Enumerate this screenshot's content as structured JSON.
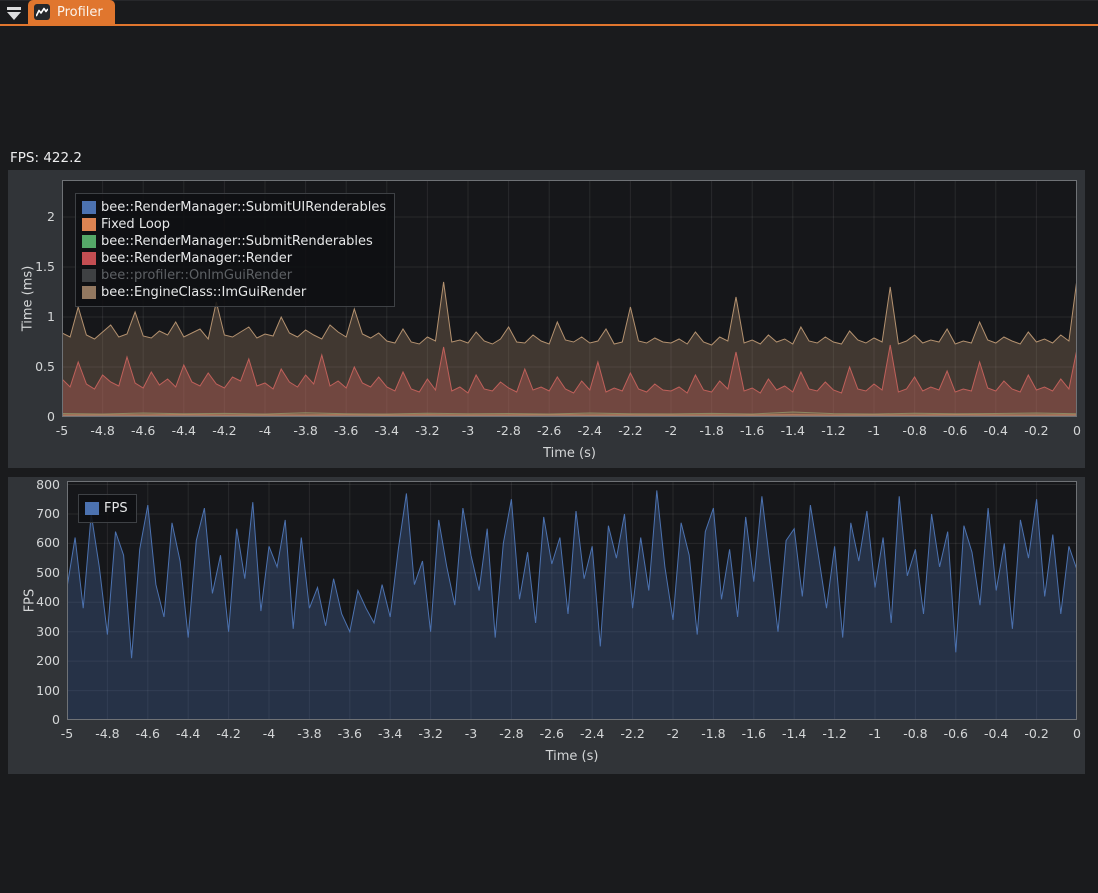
{
  "page": {
    "background": "#1A1B1D",
    "accent": "#E0762E",
    "panel_bg": "#313438",
    "plot_bg": "#16171A",
    "plot_border": "#6F7276",
    "grid_color": "rgba(255,255,255,0.08)"
  },
  "tab_bar": {
    "collapse_icon": "triangle-down-with-bar",
    "tabs": [
      {
        "label": "Profiler",
        "icon": "line-chart",
        "active": true
      }
    ]
  },
  "status": {
    "fps_text": "FPS: 422.2"
  },
  "chart_data": [
    {
      "type": "area",
      "title": "",
      "xlabel": "Time (s)",
      "ylabel": "Time (ms)",
      "xlim": [
        -5,
        0
      ],
      "ylim": [
        0,
        2.37
      ],
      "xticks": [
        -5,
        -4.8,
        -4.6,
        -4.4,
        -4.2,
        -4,
        -3.8,
        -3.6,
        -3.4,
        -3.2,
        -3,
        -2.8,
        -2.6,
        -2.4,
        -2.2,
        -2,
        -1.8,
        -1.6,
        -1.4,
        -1.2,
        -1,
        -0.8,
        -0.6,
        -0.4,
        -0.2,
        0
      ],
      "yticks": [
        0,
        0.5,
        1,
        1.5,
        2
      ],
      "grid": true,
      "legend_position": "top-left",
      "series": [
        {
          "name": "bee::RenderManager::SubmitUIRenderables",
          "color": "#4C72B0",
          "swatch": "#4C72B0",
          "fill_alpha": 0.3,
          "enabled": true,
          "x0": -5,
          "dx": 0.2,
          "values": [
            0.012,
            0.015,
            0.012,
            0.014,
            0.012,
            0.013,
            0.015,
            0.012,
            0.013,
            0.012,
            0.014,
            0.012,
            0.013,
            0.015,
            0.012,
            0.013,
            0.012,
            0.014,
            0.013,
            0.012,
            0.015,
            0.013,
            0.012,
            0.014,
            0.012,
            0.013
          ]
        },
        {
          "name": "Fixed Loop",
          "color": "#DD8452",
          "swatch": "#DD8452",
          "fill_alpha": 0.3,
          "enabled": true,
          "x0": -5,
          "dx": 0.2,
          "values": [
            0.02,
            0.022,
            0.02,
            0.025,
            0.02,
            0.021,
            0.02,
            0.024,
            0.02,
            0.022,
            0.02,
            0.021,
            0.025,
            0.02,
            0.022,
            0.02,
            0.021,
            0.02,
            0.024,
            0.02,
            0.022,
            0.02,
            0.025,
            0.021,
            0.02,
            0.022
          ]
        },
        {
          "name": "bee::RenderManager::SubmitRenderables",
          "color": "#55A868",
          "swatch": "#55A868",
          "fill_alpha": 0.3,
          "enabled": true,
          "x0": -5,
          "dx": 0.2,
          "values": [
            0.035,
            0.03,
            0.04,
            0.032,
            0.036,
            0.03,
            0.042,
            0.033,
            0.03,
            0.038,
            0.032,
            0.035,
            0.03,
            0.04,
            0.033,
            0.031,
            0.036,
            0.03,
            0.05,
            0.034,
            0.03,
            0.038,
            0.032,
            0.035,
            0.04,
            0.032
          ]
        },
        {
          "name": "bee::RenderManager::Render",
          "color": "#C44E52",
          "swatch": "#C44E52",
          "fill_alpha": 0.38,
          "enabled": true,
          "x0": -5,
          "dx": 0.04,
          "values": [
            0.38,
            0.3,
            0.55,
            0.33,
            0.28,
            0.42,
            0.35,
            0.31,
            0.6,
            0.34,
            0.29,
            0.45,
            0.32,
            0.38,
            0.3,
            0.52,
            0.35,
            0.31,
            0.44,
            0.33,
            0.29,
            0.4,
            0.36,
            0.58,
            0.31,
            0.34,
            0.28,
            0.48,
            0.35,
            0.3,
            0.42,
            0.33,
            0.62,
            0.31,
            0.36,
            0.29,
            0.5,
            0.34,
            0.3,
            0.4,
            0.3,
            0.26,
            0.45,
            0.28,
            0.25,
            0.38,
            0.27,
            0.7,
            0.26,
            0.3,
            0.24,
            0.42,
            0.28,
            0.26,
            0.35,
            0.29,
            0.25,
            0.48,
            0.27,
            0.3,
            0.26,
            0.4,
            0.28,
            0.24,
            0.36,
            0.27,
            0.55,
            0.25,
            0.29,
            0.26,
            0.44,
            0.28,
            0.25,
            0.33,
            0.27,
            0.26,
            0.3,
            0.24,
            0.42,
            0.27,
            0.25,
            0.36,
            0.28,
            0.65,
            0.26,
            0.29,
            0.24,
            0.38,
            0.27,
            0.31,
            0.25,
            0.45,
            0.28,
            0.26,
            0.35,
            0.27,
            0.24,
            0.5,
            0.28,
            0.26,
            0.33,
            0.27,
            0.72,
            0.25,
            0.28,
            0.4,
            0.26,
            0.3,
            0.27,
            0.46,
            0.25,
            0.28,
            0.26,
            0.55,
            0.29,
            0.26,
            0.36,
            0.28,
            0.25,
            0.42,
            0.27,
            0.3,
            0.26,
            0.38,
            0.28,
            0.68
          ]
        },
        {
          "name": "bee::profiler::OnImGuiRender",
          "color": "#8172B3",
          "swatch": "#3F4143",
          "fill_alpha": 0.3,
          "enabled": false,
          "x0": -5,
          "dx": 0.2,
          "values": []
        },
        {
          "name": "bee::EngineClass::ImGuiRender",
          "color": "#B3916F",
          "swatch": "#937860",
          "fill_alpha": 0.28,
          "enabled": true,
          "x0": -5,
          "dx": 0.04,
          "values": [
            0.84,
            0.8,
            1.1,
            0.82,
            0.78,
            0.85,
            0.92,
            0.8,
            0.83,
            1.05,
            0.81,
            0.79,
            0.86,
            0.82,
            0.95,
            0.8,
            0.84,
            0.88,
            0.78,
            1.15,
            0.82,
            0.8,
            0.85,
            0.9,
            0.79,
            0.83,
            0.81,
            1.0,
            0.84,
            0.8,
            0.87,
            0.82,
            0.78,
            0.92,
            0.85,
            0.8,
            1.08,
            0.83,
            0.79,
            0.84,
            0.76,
            0.74,
            0.88,
            0.75,
            0.73,
            0.8,
            0.76,
            1.35,
            0.75,
            0.77,
            0.74,
            0.85,
            0.76,
            0.73,
            0.78,
            0.9,
            0.75,
            0.74,
            0.82,
            0.76,
            0.73,
            0.95,
            0.77,
            0.75,
            0.8,
            0.74,
            0.76,
            0.88,
            0.73,
            0.75,
            1.1,
            0.76,
            0.74,
            0.79,
            0.75,
            0.74,
            0.78,
            0.73,
            0.85,
            0.75,
            0.72,
            0.8,
            0.76,
            1.2,
            0.74,
            0.77,
            0.73,
            0.82,
            0.75,
            0.78,
            0.73,
            0.9,
            0.76,
            0.74,
            0.8,
            0.75,
            0.73,
            0.86,
            0.77,
            0.74,
            0.79,
            0.75,
            1.3,
            0.73,
            0.76,
            0.82,
            0.74,
            0.77,
            0.75,
            0.88,
            0.73,
            0.76,
            0.74,
            0.95,
            0.77,
            0.74,
            0.8,
            0.76,
            0.73,
            0.85,
            0.75,
            0.78,
            0.74,
            0.82,
            0.76,
            1.38
          ]
        }
      ]
    },
    {
      "type": "area",
      "title": "",
      "xlabel": "Time (s)",
      "ylabel": "FPS",
      "xlim": [
        -5,
        0
      ],
      "ylim": [
        0,
        812
      ],
      "xticks": [
        -5,
        -4.8,
        -4.6,
        -4.4,
        -4.2,
        -4,
        -3.8,
        -3.6,
        -3.4,
        -3.2,
        -3,
        -2.8,
        -2.6,
        -2.4,
        -2.2,
        -2,
        -1.8,
        -1.6,
        -1.4,
        -1.2,
        -1,
        -0.8,
        -0.6,
        -0.4,
        -0.2,
        0
      ],
      "yticks": [
        0,
        100,
        200,
        300,
        400,
        500,
        600,
        700,
        800
      ],
      "grid": true,
      "legend_position": "top-left",
      "series": [
        {
          "name": "FPS",
          "color": "#4C72B0",
          "swatch": "#4C72B0",
          "fill_alpha": 0.3,
          "enabled": true,
          "x0": -5,
          "dx": 0.04,
          "values": [
            450,
            620,
            380,
            700,
            520,
            290,
            640,
            560,
            210,
            580,
            730,
            460,
            350,
            670,
            540,
            280,
            610,
            720,
            430,
            560,
            300,
            650,
            480,
            740,
            370,
            590,
            520,
            680,
            310,
            620,
            380,
            450,
            320,
            480,
            360,
            300,
            440,
            380,
            330,
            460,
            350,
            580,
            770,
            460,
            540,
            300,
            680,
            520,
            390,
            720,
            560,
            440,
            650,
            280,
            600,
            750,
            410,
            570,
            330,
            690,
            530,
            620,
            360,
            710,
            480,
            590,
            250,
            660,
            550,
            700,
            380,
            620,
            440,
            780,
            520,
            340,
            670,
            560,
            290,
            640,
            720,
            410,
            580,
            350,
            690,
            470,
            760,
            530,
            300,
            610,
            650,
            420,
            730,
            560,
            380,
            590,
            280,
            670,
            540,
            710,
            450,
            620,
            330,
            760,
            490,
            580,
            360,
            700,
            520,
            640,
            230,
            660,
            570,
            390,
            720,
            440,
            600,
            310,
            680,
            550,
            750,
            420,
            630,
            360,
            590,
            510
          ]
        }
      ]
    }
  ]
}
